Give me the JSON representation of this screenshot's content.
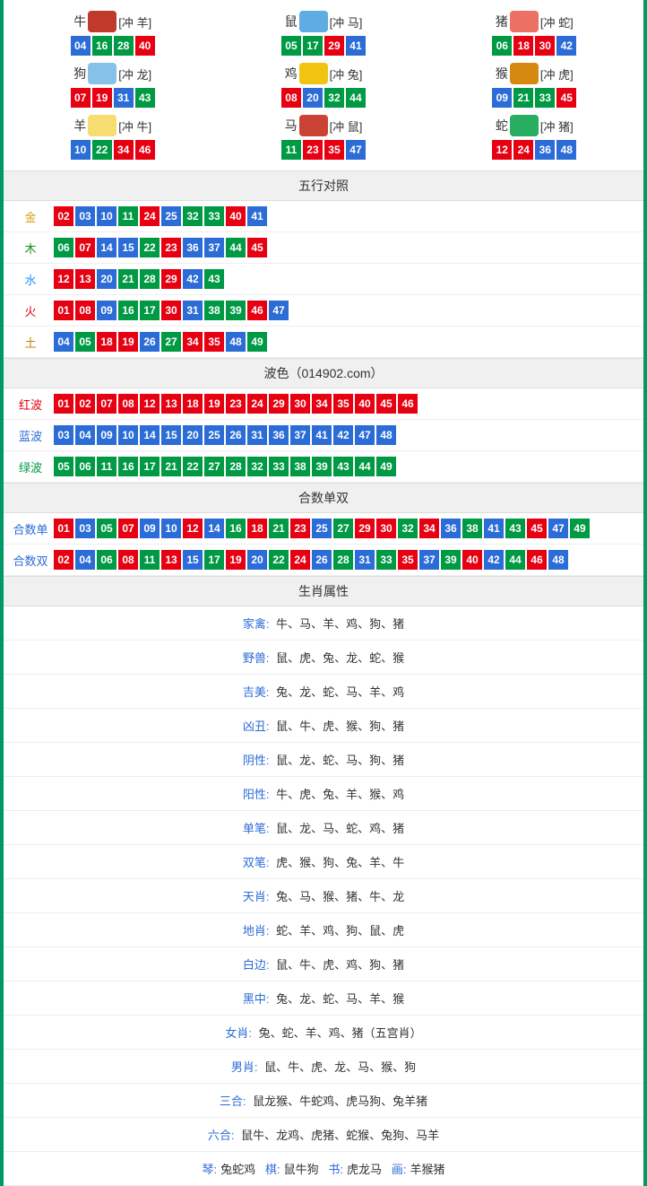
{
  "colors": {
    "red": "#e60012",
    "blue": "#2b6cd6",
    "green": "#009944",
    "gold": "#d4a017",
    "wood": "#1a8c1a",
    "water": "#1e90ff",
    "fire": "#e60012",
    "earth": "#b8860b",
    "redwave": "#e60012",
    "bluewave": "#2b6cd6",
    "greenwave": "#009944",
    "attr_label": "#2b6cd6",
    "border": "#009966"
  },
  "zodiacs": [
    {
      "name": "牛",
      "clash": "[冲 羊]",
      "icon_color": "#c0392b",
      "balls": [
        {
          "n": "04",
          "c": "blue"
        },
        {
          "n": "16",
          "c": "green"
        },
        {
          "n": "28",
          "c": "green"
        },
        {
          "n": "40",
          "c": "red"
        }
      ]
    },
    {
      "name": "鼠",
      "clash": "[冲 马]",
      "icon_color": "#5dade2",
      "balls": [
        {
          "n": "05",
          "c": "green"
        },
        {
          "n": "17",
          "c": "green"
        },
        {
          "n": "29",
          "c": "red"
        },
        {
          "n": "41",
          "c": "blue"
        }
      ]
    },
    {
      "name": "猪",
      "clash": "[冲 蛇]",
      "icon_color": "#ec7063",
      "balls": [
        {
          "n": "06",
          "c": "green"
        },
        {
          "n": "18",
          "c": "red"
        },
        {
          "n": "30",
          "c": "red"
        },
        {
          "n": "42",
          "c": "blue"
        }
      ]
    },
    {
      "name": "狗",
      "clash": "[冲 龙]",
      "icon_color": "#85c1e9",
      "balls": [
        {
          "n": "07",
          "c": "red"
        },
        {
          "n": "19",
          "c": "red"
        },
        {
          "n": "31",
          "c": "blue"
        },
        {
          "n": "43",
          "c": "green"
        }
      ]
    },
    {
      "name": "鸡",
      "clash": "[冲 兔]",
      "icon_color": "#f1c40f",
      "balls": [
        {
          "n": "08",
          "c": "red"
        },
        {
          "n": "20",
          "c": "blue"
        },
        {
          "n": "32",
          "c": "green"
        },
        {
          "n": "44",
          "c": "green"
        }
      ]
    },
    {
      "name": "猴",
      "clash": "[冲 虎]",
      "icon_color": "#d68910",
      "balls": [
        {
          "n": "09",
          "c": "blue"
        },
        {
          "n": "21",
          "c": "green"
        },
        {
          "n": "33",
          "c": "green"
        },
        {
          "n": "45",
          "c": "red"
        }
      ]
    },
    {
      "name": "羊",
      "clash": "[冲 牛]",
      "icon_color": "#f7dc6f",
      "balls": [
        {
          "n": "10",
          "c": "blue"
        },
        {
          "n": "22",
          "c": "green"
        },
        {
          "n": "34",
          "c": "red"
        },
        {
          "n": "46",
          "c": "red"
        }
      ]
    },
    {
      "name": "马",
      "clash": "[冲 鼠]",
      "icon_color": "#cb4335",
      "balls": [
        {
          "n": "11",
          "c": "green"
        },
        {
          "n": "23",
          "c": "red"
        },
        {
          "n": "35",
          "c": "red"
        },
        {
          "n": "47",
          "c": "blue"
        }
      ]
    },
    {
      "name": "蛇",
      "clash": "[冲 猪]",
      "icon_color": "#27ae60",
      "balls": [
        {
          "n": "12",
          "c": "red"
        },
        {
          "n": "24",
          "c": "red"
        },
        {
          "n": "36",
          "c": "blue"
        },
        {
          "n": "48",
          "c": "blue"
        }
      ]
    }
  ],
  "wuxing": {
    "title": "五行对照",
    "rows": [
      {
        "label": "金",
        "label_color": "gold",
        "balls": [
          {
            "n": "02",
            "c": "red"
          },
          {
            "n": "03",
            "c": "blue"
          },
          {
            "n": "10",
            "c": "blue"
          },
          {
            "n": "11",
            "c": "green"
          },
          {
            "n": "24",
            "c": "red"
          },
          {
            "n": "25",
            "c": "blue"
          },
          {
            "n": "32",
            "c": "green"
          },
          {
            "n": "33",
            "c": "green"
          },
          {
            "n": "40",
            "c": "red"
          },
          {
            "n": "41",
            "c": "blue"
          }
        ]
      },
      {
        "label": "木",
        "label_color": "wood",
        "balls": [
          {
            "n": "06",
            "c": "green"
          },
          {
            "n": "07",
            "c": "red"
          },
          {
            "n": "14",
            "c": "blue"
          },
          {
            "n": "15",
            "c": "blue"
          },
          {
            "n": "22",
            "c": "green"
          },
          {
            "n": "23",
            "c": "red"
          },
          {
            "n": "36",
            "c": "blue"
          },
          {
            "n": "37",
            "c": "blue"
          },
          {
            "n": "44",
            "c": "green"
          },
          {
            "n": "45",
            "c": "red"
          }
        ]
      },
      {
        "label": "水",
        "label_color": "water",
        "balls": [
          {
            "n": "12",
            "c": "red"
          },
          {
            "n": "13",
            "c": "red"
          },
          {
            "n": "20",
            "c": "blue"
          },
          {
            "n": "21",
            "c": "green"
          },
          {
            "n": "28",
            "c": "green"
          },
          {
            "n": "29",
            "c": "red"
          },
          {
            "n": "42",
            "c": "blue"
          },
          {
            "n": "43",
            "c": "green"
          }
        ]
      },
      {
        "label": "火",
        "label_color": "fire",
        "balls": [
          {
            "n": "01",
            "c": "red"
          },
          {
            "n": "08",
            "c": "red"
          },
          {
            "n": "09",
            "c": "blue"
          },
          {
            "n": "16",
            "c": "green"
          },
          {
            "n": "17",
            "c": "green"
          },
          {
            "n": "30",
            "c": "red"
          },
          {
            "n": "31",
            "c": "blue"
          },
          {
            "n": "38",
            "c": "green"
          },
          {
            "n": "39",
            "c": "green"
          },
          {
            "n": "46",
            "c": "red"
          },
          {
            "n": "47",
            "c": "blue"
          }
        ]
      },
      {
        "label": "土",
        "label_color": "earth",
        "balls": [
          {
            "n": "04",
            "c": "blue"
          },
          {
            "n": "05",
            "c": "green"
          },
          {
            "n": "18",
            "c": "red"
          },
          {
            "n": "19",
            "c": "red"
          },
          {
            "n": "26",
            "c": "blue"
          },
          {
            "n": "27",
            "c": "green"
          },
          {
            "n": "34",
            "c": "red"
          },
          {
            "n": "35",
            "c": "red"
          },
          {
            "n": "48",
            "c": "blue"
          },
          {
            "n": "49",
            "c": "green"
          }
        ]
      }
    ]
  },
  "bose": {
    "title": "波色（014902.com）",
    "rows": [
      {
        "label": "红波",
        "label_color": "redwave",
        "balls": [
          {
            "n": "01",
            "c": "red"
          },
          {
            "n": "02",
            "c": "red"
          },
          {
            "n": "07",
            "c": "red"
          },
          {
            "n": "08",
            "c": "red"
          },
          {
            "n": "12",
            "c": "red"
          },
          {
            "n": "13",
            "c": "red"
          },
          {
            "n": "18",
            "c": "red"
          },
          {
            "n": "19",
            "c": "red"
          },
          {
            "n": "23",
            "c": "red"
          },
          {
            "n": "24",
            "c": "red"
          },
          {
            "n": "29",
            "c": "red"
          },
          {
            "n": "30",
            "c": "red"
          },
          {
            "n": "34",
            "c": "red"
          },
          {
            "n": "35",
            "c": "red"
          },
          {
            "n": "40",
            "c": "red"
          },
          {
            "n": "45",
            "c": "red"
          },
          {
            "n": "46",
            "c": "red"
          }
        ]
      },
      {
        "label": "蓝波",
        "label_color": "bluewave",
        "balls": [
          {
            "n": "03",
            "c": "blue"
          },
          {
            "n": "04",
            "c": "blue"
          },
          {
            "n": "09",
            "c": "blue"
          },
          {
            "n": "10",
            "c": "blue"
          },
          {
            "n": "14",
            "c": "blue"
          },
          {
            "n": "15",
            "c": "blue"
          },
          {
            "n": "20",
            "c": "blue"
          },
          {
            "n": "25",
            "c": "blue"
          },
          {
            "n": "26",
            "c": "blue"
          },
          {
            "n": "31",
            "c": "blue"
          },
          {
            "n": "36",
            "c": "blue"
          },
          {
            "n": "37",
            "c": "blue"
          },
          {
            "n": "41",
            "c": "blue"
          },
          {
            "n": "42",
            "c": "blue"
          },
          {
            "n": "47",
            "c": "blue"
          },
          {
            "n": "48",
            "c": "blue"
          }
        ]
      },
      {
        "label": "绿波",
        "label_color": "greenwave",
        "balls": [
          {
            "n": "05",
            "c": "green"
          },
          {
            "n": "06",
            "c": "green"
          },
          {
            "n": "11",
            "c": "green"
          },
          {
            "n": "16",
            "c": "green"
          },
          {
            "n": "17",
            "c": "green"
          },
          {
            "n": "21",
            "c": "green"
          },
          {
            "n": "22",
            "c": "green"
          },
          {
            "n": "27",
            "c": "green"
          },
          {
            "n": "28",
            "c": "green"
          },
          {
            "n": "32",
            "c": "green"
          },
          {
            "n": "33",
            "c": "green"
          },
          {
            "n": "38",
            "c": "green"
          },
          {
            "n": "39",
            "c": "green"
          },
          {
            "n": "43",
            "c": "green"
          },
          {
            "n": "44",
            "c": "green"
          },
          {
            "n": "49",
            "c": "green"
          }
        ]
      }
    ]
  },
  "heshu": {
    "title": "合数单双",
    "rows": [
      {
        "label": "合数单",
        "label_color": "bluewave",
        "balls": [
          {
            "n": "01",
            "c": "red"
          },
          {
            "n": "03",
            "c": "blue"
          },
          {
            "n": "05",
            "c": "green"
          },
          {
            "n": "07",
            "c": "red"
          },
          {
            "n": "09",
            "c": "blue"
          },
          {
            "n": "10",
            "c": "blue"
          },
          {
            "n": "12",
            "c": "red"
          },
          {
            "n": "14",
            "c": "blue"
          },
          {
            "n": "16",
            "c": "green"
          },
          {
            "n": "18",
            "c": "red"
          },
          {
            "n": "21",
            "c": "green"
          },
          {
            "n": "23",
            "c": "red"
          },
          {
            "n": "25",
            "c": "blue"
          },
          {
            "n": "27",
            "c": "green"
          },
          {
            "n": "29",
            "c": "red"
          },
          {
            "n": "30",
            "c": "red"
          },
          {
            "n": "32",
            "c": "green"
          },
          {
            "n": "34",
            "c": "red"
          },
          {
            "n": "36",
            "c": "blue"
          },
          {
            "n": "38",
            "c": "green"
          },
          {
            "n": "41",
            "c": "blue"
          },
          {
            "n": "43",
            "c": "green"
          },
          {
            "n": "45",
            "c": "red"
          },
          {
            "n": "47",
            "c": "blue"
          },
          {
            "n": "49",
            "c": "green"
          }
        ]
      },
      {
        "label": "合数双",
        "label_color": "bluewave",
        "balls": [
          {
            "n": "02",
            "c": "red"
          },
          {
            "n": "04",
            "c": "blue"
          },
          {
            "n": "06",
            "c": "green"
          },
          {
            "n": "08",
            "c": "red"
          },
          {
            "n": "11",
            "c": "green"
          },
          {
            "n": "13",
            "c": "red"
          },
          {
            "n": "15",
            "c": "blue"
          },
          {
            "n": "17",
            "c": "green"
          },
          {
            "n": "19",
            "c": "red"
          },
          {
            "n": "20",
            "c": "blue"
          },
          {
            "n": "22",
            "c": "green"
          },
          {
            "n": "24",
            "c": "red"
          },
          {
            "n": "26",
            "c": "blue"
          },
          {
            "n": "28",
            "c": "green"
          },
          {
            "n": "31",
            "c": "blue"
          },
          {
            "n": "33",
            "c": "green"
          },
          {
            "n": "35",
            "c": "red"
          },
          {
            "n": "37",
            "c": "blue"
          },
          {
            "n": "39",
            "c": "green"
          },
          {
            "n": "40",
            "c": "red"
          },
          {
            "n": "42",
            "c": "blue"
          },
          {
            "n": "44",
            "c": "green"
          },
          {
            "n": "46",
            "c": "red"
          },
          {
            "n": "48",
            "c": "blue"
          }
        ]
      }
    ]
  },
  "attrs": {
    "title": "生肖属性",
    "rows": [
      {
        "label": "家禽:",
        "value": "牛、马、羊、鸡、狗、猪"
      },
      {
        "label": "野兽:",
        "value": "鼠、虎、兔、龙、蛇、猴"
      },
      {
        "label": "吉美:",
        "value": "兔、龙、蛇、马、羊、鸡"
      },
      {
        "label": "凶丑:",
        "value": "鼠、牛、虎、猴、狗、猪"
      },
      {
        "label": "阴性:",
        "value": "鼠、龙、蛇、马、狗、猪"
      },
      {
        "label": "阳性:",
        "value": "牛、虎、兔、羊、猴、鸡"
      },
      {
        "label": "单笔:",
        "value": "鼠、龙、马、蛇、鸡、猪"
      },
      {
        "label": "双笔:",
        "value": "虎、猴、狗、兔、羊、牛"
      },
      {
        "label": "天肖:",
        "value": "兔、马、猴、猪、牛、龙"
      },
      {
        "label": "地肖:",
        "value": "蛇、羊、鸡、狗、鼠、虎"
      },
      {
        "label": "白边:",
        "value": "鼠、牛、虎、鸡、狗、猪"
      },
      {
        "label": "黑中:",
        "value": "兔、龙、蛇、马、羊、猴"
      },
      {
        "label": "女肖:",
        "value": "兔、蛇、羊、鸡、猪（五宫肖）"
      },
      {
        "label": "男肖:",
        "value": "鼠、牛、虎、龙、马、猴、狗"
      },
      {
        "label": "三合:",
        "value": "鼠龙猴、牛蛇鸡、虎马狗、兔羊猪"
      },
      {
        "label": "六合:",
        "value": "鼠牛、龙鸡、虎猪、蛇猴、兔狗、马羊"
      }
    ],
    "final": [
      {
        "label": "琴:",
        "value": "兔蛇鸡"
      },
      {
        "label": "棋:",
        "value": "鼠牛狗"
      },
      {
        "label": "书:",
        "value": "虎龙马"
      },
      {
        "label": "画:",
        "value": "羊猴猪"
      }
    ]
  }
}
